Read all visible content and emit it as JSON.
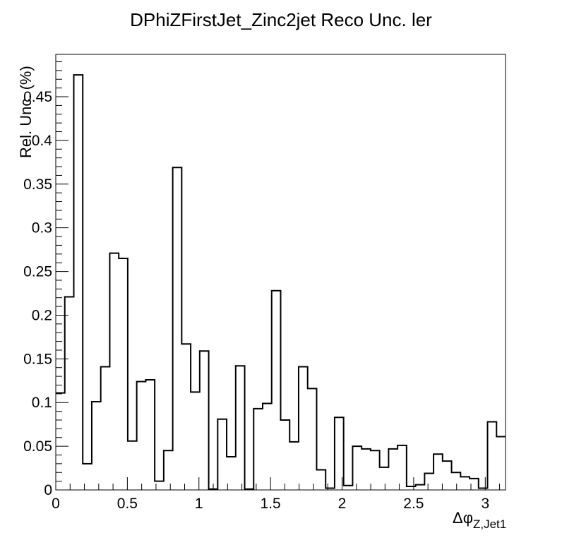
{
  "chart_data": {
    "type": "histogram",
    "title": "DPhiZFirstJet_Zinc2jet Reco Unc. ler",
    "ylabel": "Rel. Unc. (%)",
    "xlabel": "Δφ",
    "xlabel_sub": "Z,Jet1",
    "xlim": [
      0,
      3.1416
    ],
    "ylim": [
      0,
      0.4985
    ],
    "x_ticks": [
      0,
      0.5,
      1,
      1.5,
      2,
      2.5,
      3
    ],
    "x_tick_labels": [
      "0",
      "0.5",
      "1",
      "1.5",
      "2",
      "2.5",
      "3"
    ],
    "y_ticks": [
      0,
      0.05,
      0.1,
      0.15,
      0.2,
      0.25,
      0.3,
      0.35,
      0.4,
      0.45
    ],
    "y_tick_labels": [
      "0",
      "0.05",
      "0.1",
      "0.15",
      "0.2",
      "0.25",
      "0.3",
      "0.35",
      "0.4",
      "0.45"
    ],
    "bins": 50,
    "values": [
      0.111,
      0.221,
      0.475,
      0.03,
      0.101,
      0.141,
      0.271,
      0.265,
      0.056,
      0.124,
      0.126,
      0.01,
      0.045,
      0.369,
      0.167,
      0.112,
      0.159,
      0.001,
      0.081,
      0.038,
      0.142,
      0.001,
      0.093,
      0.099,
      0.228,
      0.08,
      0.055,
      0.141,
      0.116,
      0.023,
      0.002,
      0.083,
      0.005,
      0.05,
      0.047,
      0.045,
      0.026,
      0.047,
      0.051,
      0.004,
      0.006,
      0.019,
      0.041,
      0.033,
      0.02,
      0.015,
      0.013,
      0.002,
      0.078,
      0.061
    ],
    "line_color": "#000000",
    "grid": false,
    "legend": "none"
  }
}
